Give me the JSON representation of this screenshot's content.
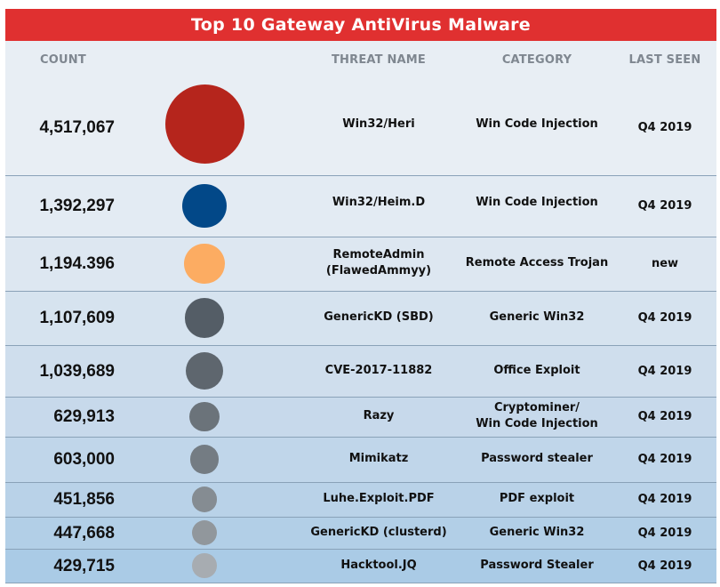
{
  "title": "Top 10 Gateway AntiVirus Malware",
  "columns": {
    "count": "COUNT",
    "threat_name": "THREAT NAME",
    "category": "CATEGORY",
    "last_seen": "LAST SEEN"
  },
  "colors": {
    "title_bar": "#e03030",
    "header_bg": "#e8eef4"
  },
  "chart_data": {
    "type": "table",
    "title": "Top 10 Gateway AntiVirus Malware",
    "columns": [
      "COUNT",
      "THREAT NAME",
      "CATEGORY",
      "LAST SEEN"
    ],
    "rows": [
      {
        "count": "4,517,067",
        "value": 4517067,
        "threat": "Win32/Heri",
        "category": "Win Code Injection",
        "last_seen": "Q4 2019",
        "bubble_color": "#b5251c",
        "row_bg": "#e8eef4"
      },
      {
        "count": "1,392,297",
        "value": 1392297,
        "threat": "Win32/Heim.D",
        "category": "Win Code Injection",
        "last_seen": "Q4 2019",
        "bubble_color": "#024888",
        "row_bg": "#e3ebf3"
      },
      {
        "count": "1,194.396",
        "value": 1194396,
        "threat": "RemoteAdmin\n(FlawedAmmyy)",
        "category": "Remote Access Trojan",
        "last_seen": "new",
        "bubble_color": "#fcac62",
        "row_bg": "#dde7f1"
      },
      {
        "count": "1,107,609",
        "value": 1107609,
        "threat": "GenericKD (SBD)",
        "category": "Generic Win32",
        "last_seen": "Q4 2019",
        "bubble_color": "#545d66",
        "row_bg": "#d6e3ef"
      },
      {
        "count": "1,039,689",
        "value": 1039689,
        "threat": "CVE-2017-11882",
        "category": "Office Exploit",
        "last_seen": "Q4 2019",
        "bubble_color": "#5e666e",
        "row_bg": "#cfdeed"
      },
      {
        "count": "629,913",
        "value": 629913,
        "threat": "Razy",
        "category": "Cryptominer/\nWin Code Injection",
        "last_seen": "Q4 2019",
        "bubble_color": "#6b737a",
        "row_bg": "#c7d9eb"
      },
      {
        "count": "603,000",
        "value": 603000,
        "threat": "Mimikatz",
        "category": "Password stealer",
        "last_seen": "Q4 2019",
        "bubble_color": "#747c83",
        "row_bg": "#c0d6ea"
      },
      {
        "count": "451,856",
        "value": 451856,
        "threat": "Luhe.Exploit.PDF",
        "category": "PDF exploit",
        "last_seen": "Q4 2019",
        "bubble_color": "#858c92",
        "row_bg": "#b9d2e8"
      },
      {
        "count": "447,668",
        "value": 447668,
        "threat": "GenericKD (clusterd)",
        "category": "Generic Win32",
        "last_seen": "Q4 2019",
        "bubble_color": "#91979c",
        "row_bg": "#b2cfe7"
      },
      {
        "count": "429,715",
        "value": 429715,
        "threat": "Hacktool.JQ",
        "category": "Password Stealer",
        "last_seen": "Q4 2019",
        "bubble_color": "#a7acb1",
        "row_bg": "#aacbe6"
      }
    ]
  }
}
